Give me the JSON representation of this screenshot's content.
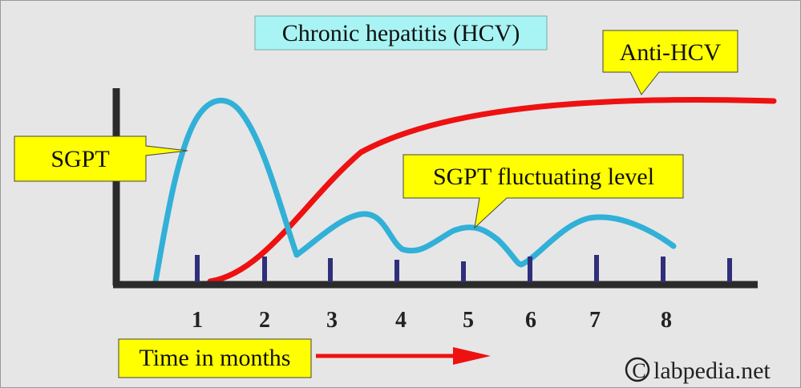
{
  "title": "Chronic hepatitis (HCV)",
  "labels": {
    "sgpt": "SGPT",
    "anti_hcv": "Anti-HCV",
    "sgpt_fluctuating": "SGPT fluctuating level",
    "time_axis": "Time in months",
    "watermark": "labpedia.net",
    "copyright_symbol": "©"
  },
  "x_ticks": [
    "1",
    "2",
    "3",
    "4",
    "5",
    "6",
    "7",
    "8"
  ],
  "colors": {
    "background": "#e6e6e6",
    "axis": "#2b2b2b",
    "sgpt_curve": "#31b0d8",
    "anti_hcv_curve": "#ee1111",
    "tick_marks": "#2f2f7a",
    "title_box": "#a8f4f4",
    "callout_box": "#ffff00",
    "time_arrow": "#ee1111"
  }
}
